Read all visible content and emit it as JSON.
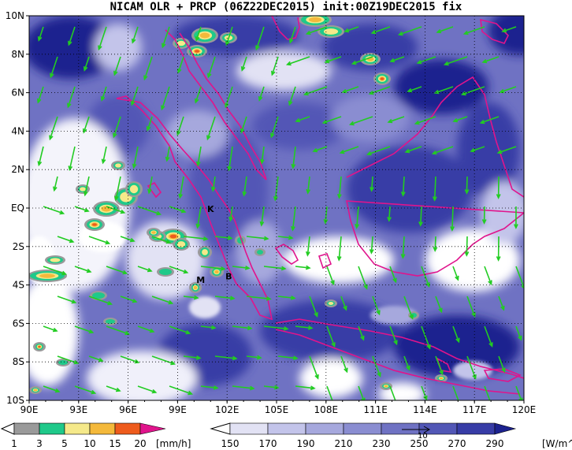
{
  "title": "NICAM OLR + PRCP (06Z22DEC2015) init:00Z19DEC2015 fix",
  "lat_labels": [
    "10N",
    "8N",
    "6N",
    "4N",
    "2N",
    "EQ",
    "2S",
    "4S",
    "6S",
    "8S",
    "10S"
  ],
  "lon_labels": [
    "90E",
    "93E",
    "96E",
    "99E",
    "102E",
    "105E",
    "108E",
    "111E",
    "114E",
    "117E",
    "120E"
  ],
  "cities": [
    {
      "label": "K",
      "lon": 101.0,
      "lat": -0.2
    },
    {
      "label": "M",
      "lon": 100.4,
      "lat": -3.9
    },
    {
      "label": "B",
      "lon": 102.1,
      "lat": -3.7
    }
  ],
  "precip_colorbar": {
    "levels": [
      "1",
      "3",
      "5",
      "10",
      "15",
      "20"
    ],
    "unit": "[mm/h]",
    "colors": [
      "#9a9a9a",
      "#1fc98a",
      "#f5e98a",
      "#f4b93b",
      "#ee5b1c",
      "#e0148c"
    ]
  },
  "olr_colorbar": {
    "levels": [
      "150",
      "170",
      "190",
      "210",
      "230",
      "250",
      "270",
      "290"
    ],
    "unit": "[W/m^2]",
    "colors": [
      "#ffffff",
      "#e2e2f4",
      "#c3c4ea",
      "#a6a8dd",
      "#8a8dd1",
      "#6f72c3",
      "#5257b6",
      "#373ca6",
      "#1c228f"
    ]
  },
  "vector_reference": {
    "label": "10"
  },
  "colors": {
    "coast": "#e0148c",
    "vector": "#22cc22"
  }
}
